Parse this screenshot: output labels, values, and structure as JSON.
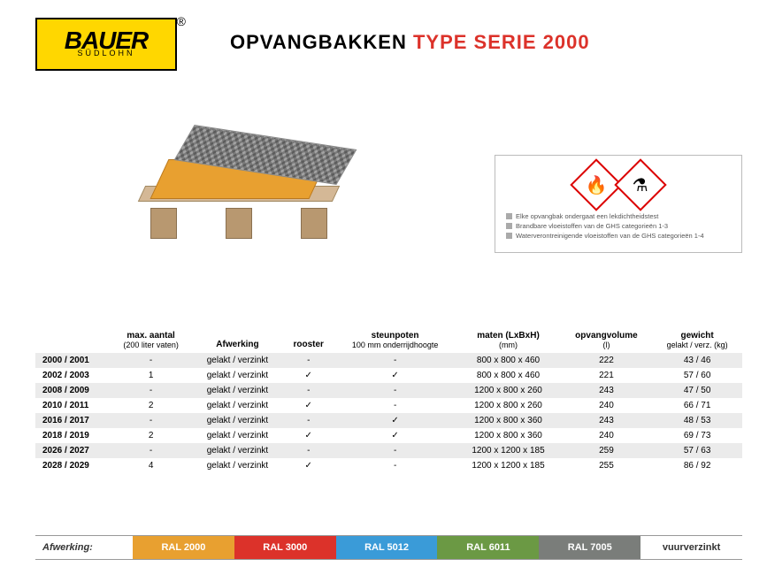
{
  "logo": {
    "brand": "BAUER",
    "sub": "SÜDLOHN",
    "reg": "®"
  },
  "title": {
    "part1": "OPVANGBAKKEN",
    "part2": "TYPE SERIE 2000"
  },
  "info_box": {
    "lines": [
      "Elke opvangbak ondergaat een lekdichtheidstest",
      "Brandbare vloeistoffen van de GHS categorieën 1-3",
      "Waterverontreinigende vloeistoffen van de GHS categorieën 1-4"
    ],
    "hazard_icons": [
      "flame-icon",
      "pollution-icon"
    ]
  },
  "table": {
    "headers": [
      {
        "h": "",
        "sub": ""
      },
      {
        "h": "max. aantal",
        "sub": "(200 liter vaten)"
      },
      {
        "h": "Afwerking",
        "sub": ""
      },
      {
        "h": "rooster",
        "sub": ""
      },
      {
        "h": "steunpoten",
        "sub": "100 mm onderrijdhoogte"
      },
      {
        "h": "maten (LxBxH)",
        "sub": "(mm)"
      },
      {
        "h": "opvangvolume",
        "sub": "(l)"
      },
      {
        "h": "gewicht",
        "sub": "gelakt / verz. (kg)"
      }
    ],
    "rows": [
      {
        "c": [
          "2000 / 2001",
          "-",
          "gelakt / verzinkt",
          "-",
          "-",
          "800 x   800 x 460",
          "222",
          "43 / 46"
        ]
      },
      {
        "c": [
          "2002 / 2003",
          "1",
          "gelakt / verzinkt",
          "✓",
          "✓",
          "800 x   800 x 460",
          "221",
          "57 / 60"
        ]
      },
      {
        "c": [
          "2008 / 2009",
          "-",
          "gelakt / verzinkt",
          "-",
          "-",
          "1200 x   800 x 260",
          "243",
          "47 / 50"
        ]
      },
      {
        "c": [
          "2010 / 2011",
          "2",
          "gelakt / verzinkt",
          "✓",
          "-",
          "1200 x   800 x 260",
          "240",
          "66 / 71"
        ]
      },
      {
        "c": [
          "2016 / 2017",
          "-",
          "gelakt / verzinkt",
          "-",
          "✓",
          "1200 x   800 x 360",
          "243",
          "48 / 53"
        ]
      },
      {
        "c": [
          "2018 / 2019",
          "2",
          "gelakt / verzinkt",
          "✓",
          "✓",
          "1200 x   800 x 360",
          "240",
          "69 / 73"
        ]
      },
      {
        "c": [
          "2026 / 2027",
          "-",
          "gelakt / verzinkt",
          "-",
          "-",
          "1200 x 1200 x 185",
          "259",
          "57 / 63"
        ]
      },
      {
        "c": [
          "2028 / 2029",
          "4",
          "gelakt / verzinkt",
          "✓",
          "-",
          "1200 x 1200 x 185",
          "255",
          "86 / 92"
        ]
      }
    ]
  },
  "finishes": {
    "label": "Afwerking:",
    "items": [
      {
        "label": "RAL 2000",
        "color": "#e8a030",
        "dark": false
      },
      {
        "label": "RAL 3000",
        "color": "#dc322a",
        "dark": false
      },
      {
        "label": "RAL 5012",
        "color": "#3a9bd8",
        "dark": false
      },
      {
        "label": "RAL 6011",
        "color": "#6b9944",
        "dark": false
      },
      {
        "label": "RAL 7005",
        "color": "#7a7d7a",
        "dark": false
      },
      {
        "label": "vuurverzinkt",
        "color": "#ffffff",
        "dark": true
      }
    ]
  },
  "styles": {
    "fonts": {
      "title": 22,
      "table": 10,
      "info": 7.5,
      "finish": 11
    },
    "colors": {
      "brand_yellow": "#ffd700",
      "accent_red": "#dc322a",
      "row_grey": "#ebebeb"
    }
  }
}
